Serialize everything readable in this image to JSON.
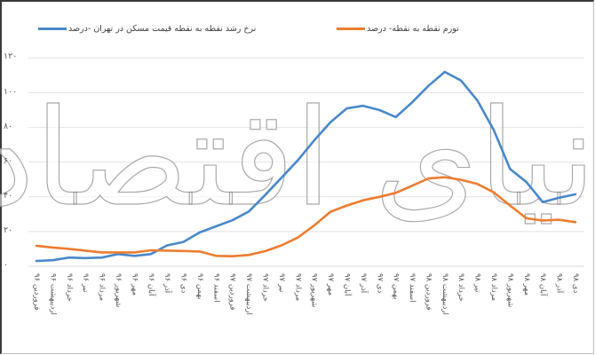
{
  "legend": {
    "items": [
      {
        "label": "تورم نقطه به نقطه- درصد",
        "color": "#ED7D31"
      },
      {
        "label": "نرخ رشد نقطه به نقطه قیمت مسکن در تهران -درصد",
        "color": "#4A89CB"
      }
    ]
  },
  "watermark": {
    "text": "دنیای اقتصاد"
  },
  "y_ticks": [
    "۱۲۰",
    "۱۰۰",
    "۸۰",
    "۶۰",
    "۴۰",
    "۲۰",
    "۰"
  ],
  "x_ticks": [
    "فروردین ۹۶",
    "اردیبهشت ۹۶",
    "خرداد ۹۶",
    "تیر ۹۶",
    "مرداد ۹۶",
    "شهریور ۹۶",
    "مهر ۹۶",
    "آبان ۹۶",
    "آذر ۹۶",
    "دی ۹۶",
    "بهمن ۹۶",
    "اسفند ۹۶",
    "فروردین ۹۷",
    "اردیبهشت ۹۷",
    "خرداد ۹۷",
    "تیر ۹۷",
    "مرداد ۹۷",
    "شهریور ۹۷",
    "مهر ۹۷",
    "آبان ۹۷",
    "آذر ۹۷",
    "دی ۹۷",
    "بهمن ۹۷",
    "اسفند ۹۷",
    "فروردین ۹۸",
    "اردیبهشت ۹۸",
    "خرداد ۹۸",
    "تیر ۹۸",
    "مرداد ۹۸",
    "شهریور ۹۸",
    "مهر ۹۸",
    "آبان ۹۸",
    "آذر ۹۸",
    "دی ۹۸"
  ],
  "chart_data": {
    "type": "line",
    "title": "",
    "xlabel": "",
    "ylabel": "",
    "ylim": [
      0,
      120
    ],
    "y_ticks": [
      0,
      20,
      40,
      60,
      80,
      100,
      120
    ],
    "grid": true,
    "legend_position": "top",
    "categories": [
      "فروردین ۹۶",
      "اردیبهشت ۹۶",
      "خرداد ۹۶",
      "تیر ۹۶",
      "مرداد ۹۶",
      "شهریور ۹۶",
      "مهر ۹۶",
      "آبان ۹۶",
      "آذر ۹۶",
      "دی ۹۶",
      "بهمن ۹۶",
      "اسفند ۹۶",
      "فروردین ۹۷",
      "اردیبهشت ۹۷",
      "خرداد ۹۷",
      "تیر ۹۷",
      "مرداد ۹۷",
      "شهریور ۹۷",
      "مهر ۹۷",
      "آبان ۹۷",
      "آذر ۹۷",
      "دی ۹۷",
      "بهمن ۹۷",
      "اسفند ۹۷",
      "فروردین ۹۸",
      "اردیبهشت ۹۸",
      "خرداد ۹۸",
      "تیر ۹۸",
      "مرداد ۹۸",
      "شهریور ۹۸",
      "مهر ۹۸",
      "آبان ۹۸",
      "آذر ۹۸",
      "دی ۹۸"
    ],
    "series": [
      {
        "name": "نرخ رشد نقطه به نقطه قیمت مسکن در تهران -درصد",
        "color": "#4A89CB",
        "values": [
          3,
          3.5,
          5,
          4.7,
          5,
          7,
          6,
          7,
          12,
          14,
          19.5,
          23,
          26.5,
          31.5,
          41,
          51,
          61,
          72.5,
          83,
          91,
          92.5,
          90,
          86,
          94.5,
          104,
          112,
          107,
          95.5,
          78.5,
          56,
          48.5,
          37,
          39.5,
          41.5
        ]
      },
      {
        "name": "تورم نقطه به نقطه- درصد",
        "color": "#ED7D31",
        "values": [
          11.8,
          10.8,
          10,
          9,
          8,
          8,
          8,
          9.2,
          9,
          8.8,
          8.5,
          6,
          5.8,
          6.5,
          8.7,
          12,
          16.5,
          23.5,
          31.4,
          35,
          38,
          40,
          42.3,
          46.4,
          50.6,
          51.3,
          49.8,
          47.4,
          42.6,
          35,
          27.6,
          26.4,
          26.8,
          25.4
        ]
      }
    ]
  }
}
